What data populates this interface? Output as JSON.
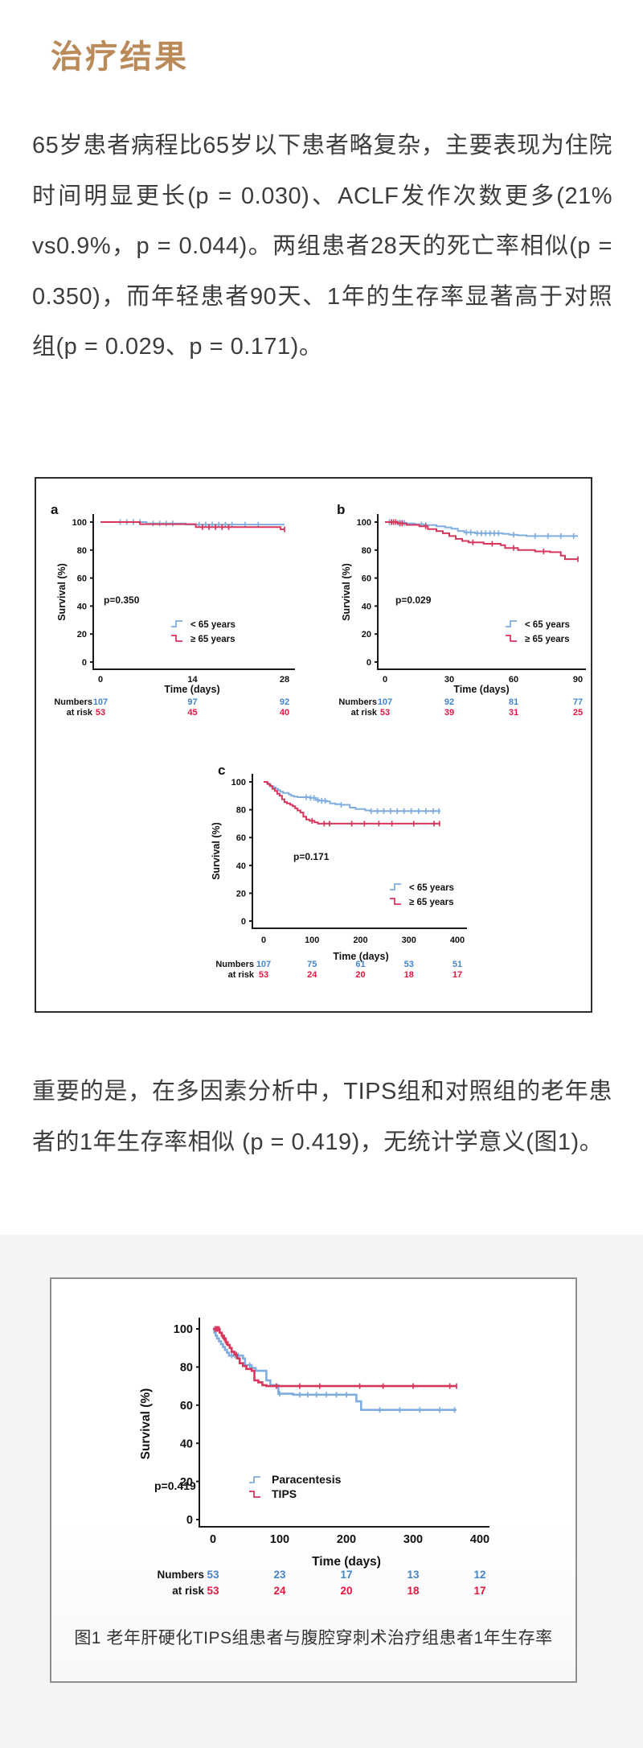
{
  "page": {
    "title": "治疗结果",
    "paragraph1": "65岁患者病程比65岁以下患者略复杂，主要表现为住院时间明显更长(p = 0.030)、ACLF发作次数更多(21% vs0.9%，p = 0.044)。两组患者28天的死亡率相似(p = 0.350)，而年轻患者90天、1年的生存率显著高于对照组(p = 0.029、p = 0.171)。",
    "paragraph2": "重要的是，在多因素分析中，TIPS组和对照组的老年患者的1年生存率相似 (p = 0.419)，无统计学意义(图1)。"
  },
  "colors": {
    "curve_blue": "#7FADE0",
    "curve_red": "#D8365B",
    "num_blue": "#4285C9",
    "num_red": "#E3173E",
    "axis": "#1a1a1a",
    "title_gold": "#BA8A58",
    "body_text": "#3d3d3d"
  },
  "chart_data": [
    {
      "id": "a",
      "type": "line",
      "panel_label": "a",
      "pvalue": "p=0.350",
      "xlabel": "Time (days)",
      "ylabel": "Survival (%)",
      "xlim": [
        0,
        28
      ],
      "ylim": [
        0,
        100
      ],
      "xticks": [
        0,
        14,
        28
      ],
      "yticks": [
        0,
        20,
        40,
        60,
        80,
        100
      ],
      "legend": [
        "< 65 years",
        "≥ 65 years"
      ],
      "series": [
        {
          "name": "< 65 years",
          "color_key": "curve_blue",
          "start": 100,
          "end": 28,
          "events": [
            [
              7,
              99
            ],
            [
              13,
              98.2
            ]
          ],
          "censors": [
            3,
            4,
            5,
            6,
            8,
            9,
            10,
            11,
            15,
            16,
            17,
            18,
            19,
            20,
            22,
            24
          ]
        },
        {
          "name": "≥ 65 years",
          "color_key": "curve_red",
          "start": 100,
          "end": 28,
          "events": [
            [
              6,
              98.5
            ],
            [
              14.5,
              96.4
            ],
            [
              27.4,
              94.8
            ]
          ],
          "censors": [
            15.5,
            16.5,
            17.5,
            18.5,
            19.5,
            28
          ]
        }
      ],
      "numbers_at_risk": {
        "label_line1": "Numbers",
        "label_line2": "at risk",
        "rows": [
          {
            "color_key": "num_blue",
            "values": [
              "107",
              "97",
              "92"
            ]
          },
          {
            "color_key": "num_red",
            "values": [
              "53",
              "45",
              "40"
            ]
          }
        ]
      }
    },
    {
      "id": "b",
      "type": "line",
      "panel_label": "b",
      "pvalue": "p=0.029",
      "xlabel": "Time (days)",
      "ylabel": "Survival (%)",
      "xlim": [
        0,
        90
      ],
      "ylim": [
        0,
        100
      ],
      "xticks": [
        0,
        30,
        60,
        90
      ],
      "yticks": [
        0,
        20,
        40,
        60,
        80,
        100
      ],
      "legend": [
        "< 65 years",
        "≥ 65 years"
      ],
      "series": [
        {
          "name": "< 65 years",
          "color_key": "curve_blue",
          "start": 100,
          "end": 90,
          "events": [
            [
              5,
              99.5
            ],
            [
              10,
              99
            ],
            [
              14,
              98.4
            ],
            [
              18,
              97.8
            ],
            [
              24,
              97
            ],
            [
              28,
              96.2
            ],
            [
              31,
              95.3
            ],
            [
              34,
              93.6
            ],
            [
              37,
              92.6
            ],
            [
              42,
              92
            ],
            [
              55,
              91.6
            ],
            [
              58,
              91
            ],
            [
              62,
              90.5
            ],
            [
              66,
              90
            ]
          ],
          "censors": [
            2,
            3,
            4,
            6,
            7,
            8,
            9,
            17,
            19,
            38,
            40,
            43,
            45,
            47,
            49,
            51,
            53,
            60,
            70,
            76,
            82,
            88
          ]
        },
        {
          "name": "≥ 65 years",
          "color_key": "curve_red",
          "start": 100,
          "end": 90,
          "events": [
            [
              6,
              99
            ],
            [
              10,
              98
            ],
            [
              16,
              97
            ],
            [
              20,
              95
            ],
            [
              24,
              93.5
            ],
            [
              27,
              92
            ],
            [
              30,
              90
            ],
            [
              33,
              88
            ],
            [
              36,
              86.5
            ],
            [
              39,
              85.5
            ],
            [
              46,
              84.5
            ],
            [
              54,
              83.5
            ],
            [
              56,
              81.5
            ],
            [
              62,
              80
            ],
            [
              70,
              79
            ],
            [
              77,
              78.5
            ],
            [
              82,
              76
            ],
            [
              84,
              73.5
            ]
          ],
          "censors": [
            3,
            4,
            5,
            7,
            8,
            19,
            41,
            50,
            60,
            74,
            90
          ]
        }
      ],
      "numbers_at_risk": {
        "label_line1": "Numbers",
        "label_line2": "at risk",
        "rows": [
          {
            "color_key": "num_blue",
            "values": [
              "107",
              "92",
              "81",
              "77"
            ]
          },
          {
            "color_key": "num_red",
            "values": [
              "53",
              "39",
              "31",
              "25"
            ]
          }
        ]
      }
    },
    {
      "id": "c",
      "type": "line",
      "panel_label": "c",
      "pvalue": "p=0.171",
      "xlabel": "Time (days)",
      "ylabel": "Survival (%)",
      "xlim": [
        0,
        400
      ],
      "ylim": [
        0,
        100
      ],
      "xticks": [
        0,
        100,
        200,
        300,
        400
      ],
      "yticks": [
        0,
        20,
        40,
        60,
        80,
        100
      ],
      "legend": [
        "< 65 years",
        "≥ 65 years"
      ],
      "series": [
        {
          "name": "< 65 years",
          "color_key": "curve_blue",
          "start": 100,
          "end": 365,
          "events": [
            [
              7,
              99
            ],
            [
              11,
              98
            ],
            [
              15,
              97
            ],
            [
              20,
              96
            ],
            [
              25,
              95
            ],
            [
              30,
              94
            ],
            [
              34,
              93
            ],
            [
              40,
              92
            ],
            [
              52,
              91
            ],
            [
              57,
              90
            ],
            [
              62,
              89.5
            ],
            [
              70,
              89
            ],
            [
              95,
              88.5
            ],
            [
              108,
              87
            ],
            [
              115,
              86.5
            ],
            [
              130,
              86
            ],
            [
              137,
              84.5
            ],
            [
              148,
              84
            ],
            [
              160,
              83.5
            ],
            [
              178,
              81.5
            ],
            [
              190,
              80.5
            ],
            [
              210,
              79.5
            ],
            [
              220,
              79
            ]
          ],
          "censors": [
            88,
            97,
            104,
            112,
            120,
            127,
            160,
            222,
            235,
            248,
            262,
            276,
            290,
            305,
            320,
            335,
            350,
            362
          ]
        },
        {
          "name": "≥ 65 years",
          "color_key": "curve_red",
          "start": 100,
          "end": 365,
          "events": [
            [
              8,
              98.5
            ],
            [
              13,
              97
            ],
            [
              18,
              95
            ],
            [
              23,
              93.5
            ],
            [
              28,
              91.5
            ],
            [
              33,
              90
            ],
            [
              38,
              87.5
            ],
            [
              43,
              85.5
            ],
            [
              48,
              84.5
            ],
            [
              55,
              83.5
            ],
            [
              60,
              82.5
            ],
            [
              65,
              81
            ],
            [
              70,
              79.5
            ],
            [
              76,
              78
            ],
            [
              82,
              75
            ],
            [
              88,
              73
            ],
            [
              95,
              72
            ],
            [
              105,
              71
            ],
            [
              112,
              70
            ]
          ],
          "censors": [
            100,
            125,
            136,
            182,
            208,
            238,
            265,
            310,
            352,
            363
          ]
        }
      ],
      "numbers_at_risk": {
        "label_line1": "Numbers",
        "label_line2": "at risk",
        "rows": [
          {
            "color_key": "num_blue",
            "values": [
              "107",
              "75",
              "61",
              "53",
              "51"
            ]
          },
          {
            "color_key": "num_red",
            "values": [
              "53",
              "24",
              "20",
              "18",
              "17"
            ]
          }
        ]
      }
    },
    {
      "id": "fig2",
      "type": "line",
      "panel_label": "",
      "pvalue": "p=0.419",
      "xlabel": "Time (days)",
      "ylabel": "Survival (%)",
      "xlim": [
        0,
        400
      ],
      "ylim": [
        0,
        100
      ],
      "xticks": [
        0,
        100,
        200,
        300,
        400
      ],
      "yticks": [
        0,
        20,
        40,
        60,
        80,
        100
      ],
      "legend": [
        "Paracentesis",
        "TIPS"
      ],
      "caption": "图1 老年肝硬化TIPS组患者与腹腔穿刺术治疗组患者1年生存率",
      "series": [
        {
          "name": "Paracentesis",
          "color_key": "curve_blue",
          "start": 100,
          "end": 365,
          "events": [
            [
              2,
              98
            ],
            [
              4,
              96.5
            ],
            [
              6,
              95
            ],
            [
              9,
              93.5
            ],
            [
              12,
              92
            ],
            [
              15,
              90.5
            ],
            [
              18,
              89
            ],
            [
              21,
              87.5
            ],
            [
              24,
              86
            ],
            [
              45,
              84.5
            ],
            [
              48,
              81
            ],
            [
              58,
              79.5
            ],
            [
              64,
              78
            ],
            [
              80,
              73
            ],
            [
              86,
              70.5
            ],
            [
              98,
              66
            ],
            [
              120,
              65.5
            ],
            [
              215,
              62
            ],
            [
              222,
              57.5
            ]
          ],
          "censors": [
            28,
            33,
            38,
            55,
            100,
            130,
            142,
            155,
            170,
            185,
            200,
            250,
            280,
            310,
            340,
            362
          ]
        },
        {
          "name": "TIPS",
          "color_key": "curve_red",
          "start": 100,
          "end": 365,
          "events": [
            [
              10,
              98
            ],
            [
              13,
              96.5
            ],
            [
              16,
              95
            ],
            [
              19,
              93
            ],
            [
              22,
              91.5
            ],
            [
              25,
              90
            ],
            [
              28,
              88
            ],
            [
              32,
              86.5
            ],
            [
              36,
              84.5
            ],
            [
              40,
              82
            ],
            [
              45,
              80.5
            ],
            [
              50,
              79
            ],
            [
              58,
              78
            ],
            [
              62,
              73
            ],
            [
              68,
              72
            ],
            [
              74,
              70.5
            ],
            [
              80,
              70
            ]
          ],
          "censors": [
            3,
            5,
            7,
            9,
            14,
            17,
            20,
            35,
            95,
            130,
            160,
            220,
            255,
            300,
            355,
            365
          ]
        }
      ],
      "numbers_at_risk": {
        "label_line1": "Numbers",
        "label_line2": "at risk",
        "rows": [
          {
            "color_key": "num_blue",
            "values": [
              "53",
              "23",
              "17",
              "13",
              "12"
            ]
          },
          {
            "color_key": "num_red",
            "values": [
              "53",
              "24",
              "20",
              "18",
              "17"
            ]
          }
        ]
      }
    }
  ]
}
